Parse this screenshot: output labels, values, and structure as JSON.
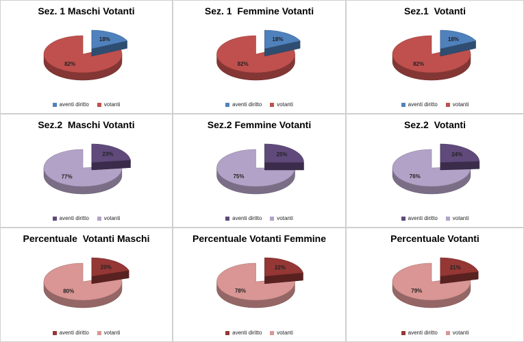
{
  "chart_data": [
    {
      "type": "pie",
      "title": "Sez. 1 Maschi Votanti",
      "categories": [
        "aventi diritto",
        "votanti"
      ],
      "values": [
        18,
        82
      ],
      "labels": [
        "18%",
        "82%"
      ],
      "colors": {
        "aventi diritto": "#4f81bd",
        "votanti": "#c0504d"
      },
      "legend_position": "bottom"
    },
    {
      "type": "pie",
      "title": "Sez. 1  Femmine Votanti",
      "categories": [
        "aventi diritto",
        "votanti"
      ],
      "values": [
        18,
        82
      ],
      "labels": [
        "18%",
        "82%"
      ],
      "colors": {
        "aventi diritto": "#4f81bd",
        "votanti": "#c0504d"
      },
      "legend_position": "bottom"
    },
    {
      "type": "pie",
      "title": "Sez.1  Votanti",
      "categories": [
        "aventi diritto",
        "votanti"
      ],
      "values": [
        18,
        82
      ],
      "labels": [
        "18%",
        "82%"
      ],
      "colors": {
        "aventi diritto": "#4f81bd",
        "votanti": "#c0504d"
      },
      "legend_position": "bottom"
    },
    {
      "type": "pie",
      "title": "Sez.2  Maschi Votanti",
      "categories": [
        "aventi diritto",
        "votanti"
      ],
      "values": [
        23,
        77
      ],
      "labels": [
        "23%",
        "77%"
      ],
      "colors": {
        "aventi diritto": "#604a7b",
        "votanti": "#b3a2c7"
      },
      "legend_position": "bottom"
    },
    {
      "type": "pie",
      "title": "Sez.2 Femmine Votanti",
      "categories": [
        "aventi diritto",
        "votanti"
      ],
      "values": [
        25,
        75
      ],
      "labels": [
        "25%",
        "75%"
      ],
      "colors": {
        "aventi diritto": "#604a7b",
        "votanti": "#b3a2c7"
      },
      "legend_position": "bottom"
    },
    {
      "type": "pie",
      "title": "Sez.2  Votanti",
      "categories": [
        "aventi diritto",
        "votanti"
      ],
      "values": [
        24,
        76
      ],
      "labels": [
        "24%",
        "76%"
      ],
      "colors": {
        "aventi diritto": "#604a7b",
        "votanti": "#b3a2c7"
      },
      "legend_position": "bottom"
    },
    {
      "type": "pie",
      "title": "Percentuale  Votanti Maschi",
      "categories": [
        "aventi diritto",
        "votanti"
      ],
      "values": [
        20,
        80
      ],
      "labels": [
        "20%",
        "80%"
      ],
      "colors": {
        "aventi diritto": "#953735",
        "votanti": "#d99694"
      },
      "legend_position": "bottom"
    },
    {
      "type": "pie",
      "title": "Percentuale Votanti Femmine",
      "categories": [
        "aventi diritto",
        "votanti"
      ],
      "values": [
        22,
        78
      ],
      "labels": [
        "22%",
        "78%"
      ],
      "colors": {
        "aventi diritto": "#953735",
        "votanti": "#d99694"
      },
      "legend_position": "bottom"
    },
    {
      "type": "pie",
      "title": "Percentuale Votanti",
      "categories": [
        "aventi diritto",
        "votanti"
      ],
      "values": [
        21,
        79
      ],
      "labels": [
        "21%",
        "79%"
      ],
      "colors": {
        "aventi diritto": "#953735",
        "votanti": "#d99694"
      },
      "legend_position": "bottom"
    }
  ]
}
